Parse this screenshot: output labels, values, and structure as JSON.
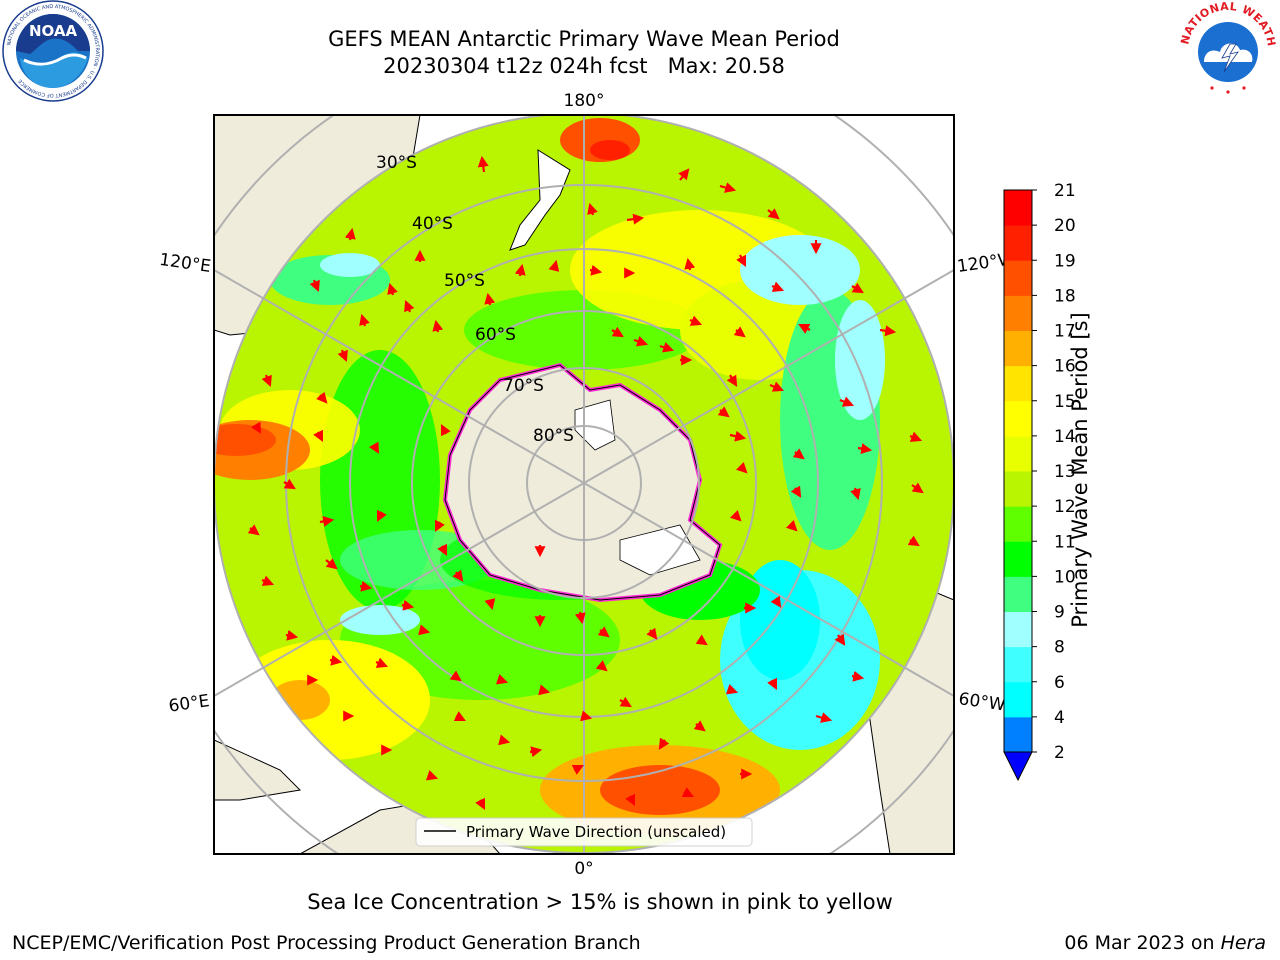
{
  "header": {
    "title_line1": "GEFS MEAN Antarctic Primary Wave Mean Period",
    "title_line2": "20230304 t12z 024h fcst   Max: 20.58"
  },
  "logos": {
    "noaa_text": "NOAA",
    "noaa_ring_text": "NATIONAL OCEANIC AND ATMOSPHERIC ADMINISTRATION · U.S. DEPARTMENT OF COMMERCE",
    "nws_ring_text": "NATIONAL WEATHER SERVICE"
  },
  "map": {
    "longitude_labels": [
      "180°",
      "120°E",
      "120°W",
      "60°E",
      "60°W",
      "0°"
    ],
    "latitude_labels": [
      "30°S",
      "40°S",
      "50°S",
      "60°S",
      "70°S",
      "80°S"
    ],
    "legend_text": "Primary Wave Direction (unscaled)",
    "colors": {
      "land": "#efecdc",
      "ocean_base": "#b9f400",
      "ice_edge": "#ff2bd6",
      "arrow": "#ff0000",
      "grid": "#b0b0b0"
    }
  },
  "colorbar": {
    "label": "Primary Wave Mean Period [s]",
    "ticks": [
      "2",
      "4",
      "6",
      "8",
      "9",
      "10",
      "11",
      "12",
      "13",
      "14",
      "15",
      "16",
      "17",
      "18",
      "19",
      "20",
      "21"
    ],
    "colors": [
      "#0000ff",
      "#0080ff",
      "#00ffff",
      "#40ffff",
      "#a0ffff",
      "#40ff80",
      "#00ff00",
      "#60ff00",
      "#b9f400",
      "#e8ff00",
      "#ffff00",
      "#ffe400",
      "#ffb000",
      "#ff8000",
      "#ff5000",
      "#ff2000",
      "#ff0000"
    ]
  },
  "footer": {
    "caption": "Sea Ice Concentration > 15% is shown in pink to yellow",
    "left": "NCEP/EMC/Verification Post Processing Product Generation Branch",
    "right_date": "06 Mar 2023 on ",
    "right_machine": "Hera"
  }
}
